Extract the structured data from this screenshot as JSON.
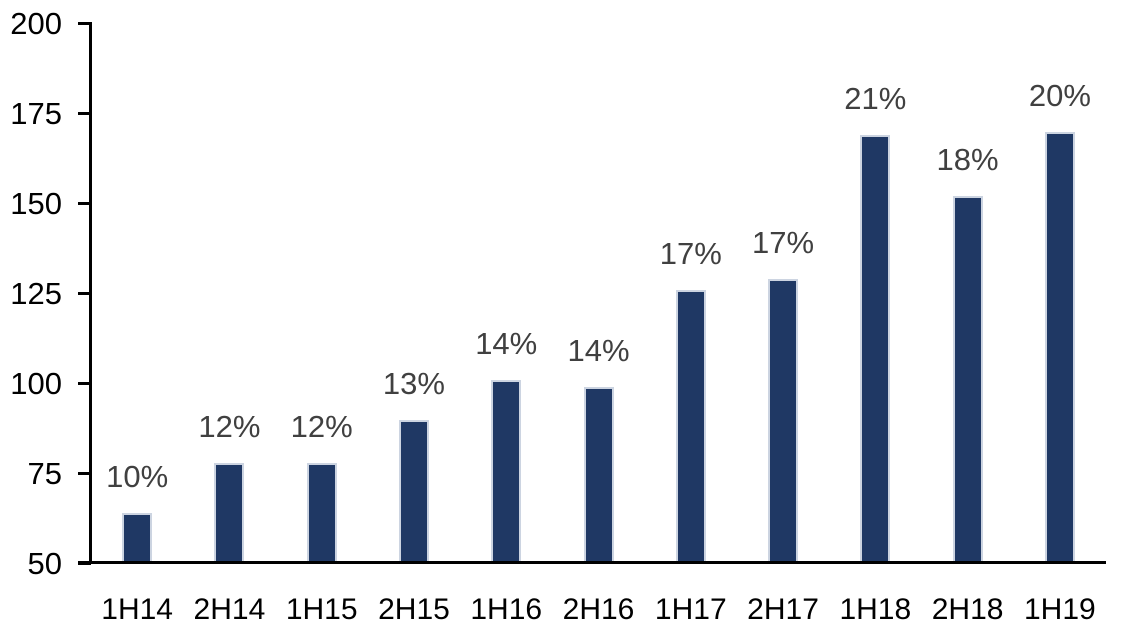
{
  "chart_data": {
    "type": "bar",
    "title": "",
    "xlabel": "",
    "ylabel": "",
    "categories": [
      "1H14",
      "2H14",
      "1H15",
      "2H15",
      "1H16",
      "2H16",
      "1H17",
      "2H17",
      "1H18",
      "2H18",
      "1H19"
    ],
    "values": [
      64,
      78,
      78,
      90,
      101,
      99,
      126,
      129,
      169,
      152,
      170
    ],
    "data_labels": [
      "10%",
      "12%",
      "12%",
      "13%",
      "14%",
      "14%",
      "17%",
      "17%",
      "21%",
      "18%",
      "20%"
    ],
    "ylim": [
      50,
      200
    ],
    "yticks": [
      50,
      75,
      100,
      125,
      150,
      175,
      200
    ],
    "grid": false,
    "legend": "none",
    "colors": {
      "bar_fill": "#1f3864",
      "bar_border": "#ccd4e1",
      "axis": "#000000",
      "tick_label": "#000000",
      "data_label": "#404040",
      "background": "#ffffff"
    }
  }
}
